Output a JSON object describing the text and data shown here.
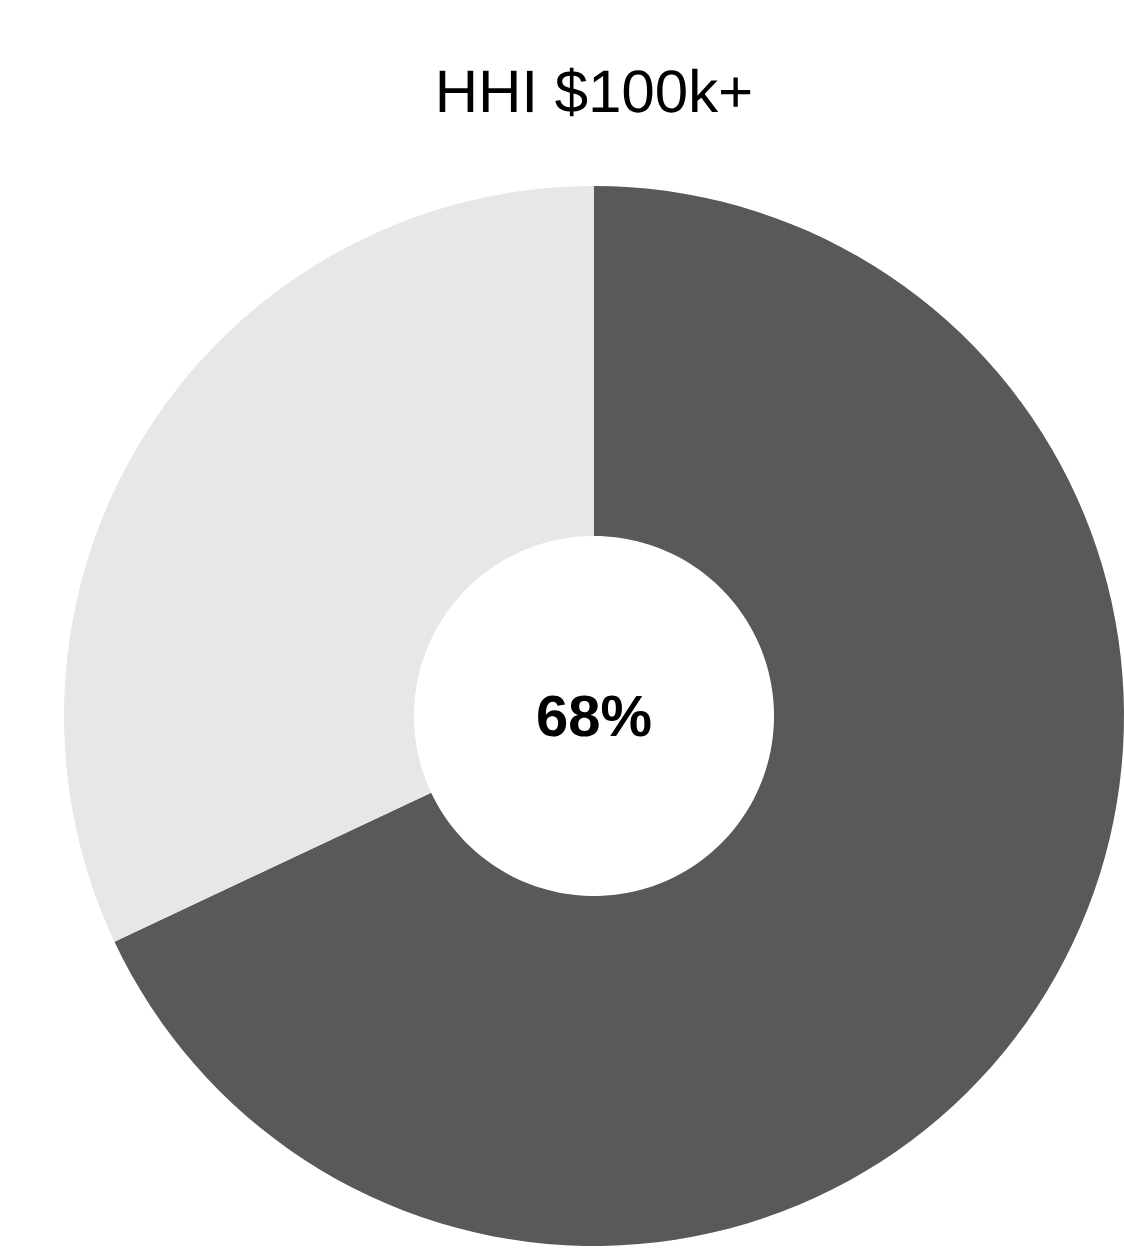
{
  "chart_data": {
    "type": "donut",
    "title": "HHI $100k+",
    "categories": [
      null,
      null
    ],
    "values": [
      68,
      32
    ],
    "colors": [
      "#595959",
      "#e6e7e9"
    ],
    "value_labels": [
      "68%",
      null
    ]
  }
}
